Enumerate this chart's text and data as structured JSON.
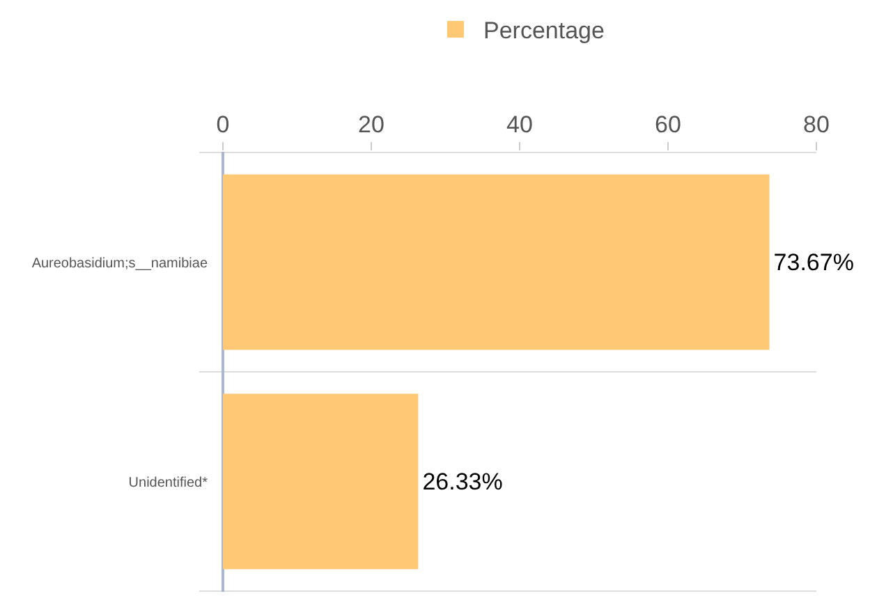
{
  "chart_data": {
    "type": "bar",
    "orientation": "horizontal",
    "categories": [
      "Aureobasidium;s__namibiae",
      "Unidentified*"
    ],
    "series": [
      {
        "name": "Percentage",
        "color": "#ffc875",
        "values": [
          73.67,
          26.33
        ],
        "value_labels": [
          "73.67%",
          "26.33%"
        ]
      }
    ],
    "xlim": [
      0,
      80
    ],
    "xticks": [
      0,
      20,
      40,
      60,
      80
    ],
    "grid": "y",
    "legend": "top"
  }
}
